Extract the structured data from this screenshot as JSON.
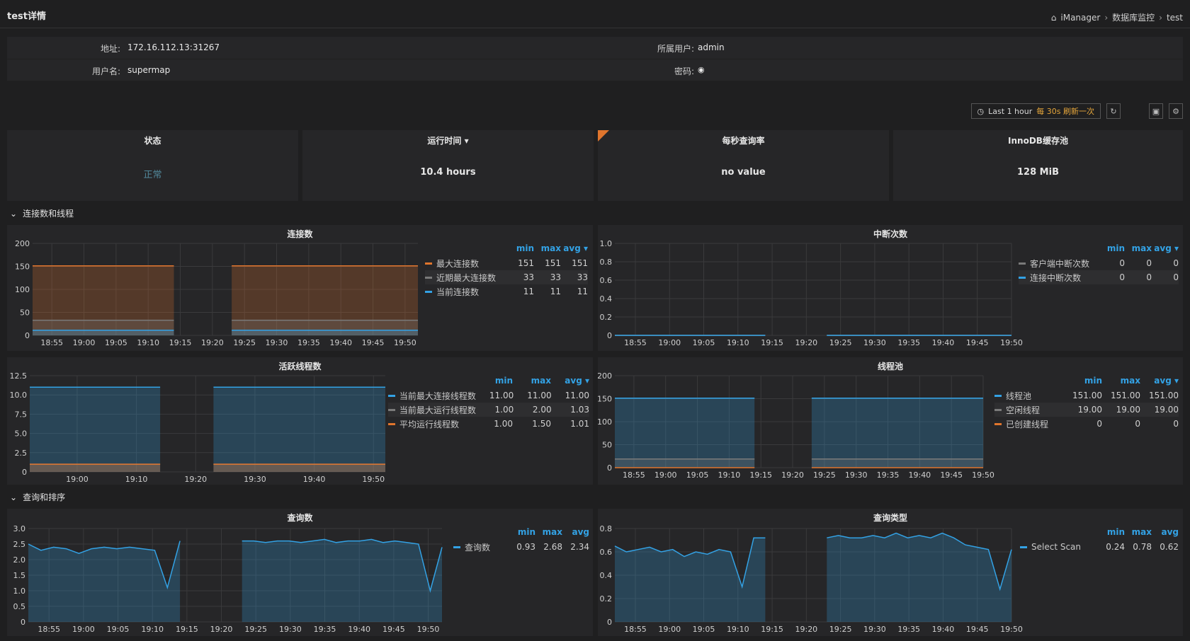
{
  "header": {
    "title": "test详情",
    "breadcrumb": [
      "iManager",
      "数据库监控",
      "test"
    ]
  },
  "info": {
    "address_label": "地址:",
    "address": "172.16.112.13:31267",
    "owner_label": "所属用户:",
    "owner": "admin",
    "username_label": "用户名:",
    "username": "supermap",
    "password_label": "密码:",
    "password_icon": "eye-icon"
  },
  "timepicker": {
    "range": "Last 1 hour",
    "refresh": "每 30s 刷新一次"
  },
  "stats": [
    {
      "title": "状态",
      "value": "正常"
    },
    {
      "title": "运行时间",
      "value": "10.4 hours"
    },
    {
      "title": "每秒查询率",
      "value": "no value"
    },
    {
      "title": "InnoDB缓存池",
      "value": "128 MiB"
    }
  ],
  "sections": {
    "connections": "连接数和线程",
    "queries": "查询和排序"
  },
  "colors": {
    "orange": "#e0752d",
    "blue": "#33a2e5",
    "grey": "#7a7a7a",
    "panel": "#262628"
  },
  "panels": {
    "connections": {
      "title": "连接数",
      "legend_header": [
        "min",
        "max",
        "avg"
      ],
      "legend": [
        {
          "name": "最大连接数",
          "color": "#e0752d",
          "min": "151",
          "max": "151",
          "avg": "151"
        },
        {
          "name": "近期最大连接数",
          "color": "#7a7a7a",
          "min": "33",
          "max": "33",
          "avg": "33"
        },
        {
          "name": "当前连接数",
          "color": "#33a2e5",
          "min": "11",
          "max": "11",
          "avg": "11"
        }
      ]
    },
    "aborted": {
      "title": "中断次数",
      "legend_header": [
        "min",
        "max",
        "avg"
      ],
      "legend": [
        {
          "name": "客户端中断次数",
          "color": "#7a7a7a",
          "min": "0",
          "max": "0",
          "avg": "0"
        },
        {
          "name": "连接中断次数",
          "color": "#33a2e5",
          "min": "0",
          "max": "0",
          "avg": "0"
        }
      ]
    },
    "threads": {
      "title": "活跃线程数",
      "legend_header": [
        "min",
        "max",
        "avg"
      ],
      "legend": [
        {
          "name": "当前最大连接线程数",
          "color": "#33a2e5",
          "min": "11.00",
          "max": "11.00",
          "avg": "11.00"
        },
        {
          "name": "当前最大运行线程数",
          "color": "#7a7a7a",
          "min": "1.00",
          "max": "2.00",
          "avg": "1.03"
        },
        {
          "name": "平均运行线程数",
          "color": "#e0752d",
          "min": "1.00",
          "max": "1.50",
          "avg": "1.01"
        }
      ]
    },
    "threadpool": {
      "title": "线程池",
      "legend_header": [
        "min",
        "max",
        "avg"
      ],
      "legend": [
        {
          "name": "线程池",
          "color": "#33a2e5",
          "min": "151.00",
          "max": "151.00",
          "avg": "151.00"
        },
        {
          "name": "空闲线程",
          "color": "#7a7a7a",
          "min": "19.00",
          "max": "19.00",
          "avg": "19.00"
        },
        {
          "name": "已创建线程",
          "color": "#e0752d",
          "min": "0",
          "max": "0",
          "avg": "0"
        }
      ]
    },
    "queries": {
      "title": "查询数",
      "legend_header": [
        "min",
        "max",
        "avg"
      ],
      "legend": [
        {
          "name": "查询数",
          "color": "#33a2e5",
          "min": "0.93",
          "max": "2.68",
          "avg": "2.34"
        }
      ]
    },
    "querytype": {
      "title": "查询类型",
      "legend_header": [
        "min",
        "max",
        "avg"
      ],
      "legend": [
        {
          "name": "Select Scan",
          "color": "#33a2e5",
          "min": "0.24",
          "max": "0.78",
          "avg": "0.62"
        }
      ]
    }
  },
  "chart_data": [
    {
      "type": "area",
      "title": "连接数",
      "ylim": [
        0,
        200
      ],
      "y_ticks": [
        "0",
        "50",
        "100",
        "150",
        "200"
      ],
      "x_ticks": [
        "18:55",
        "19:00",
        "19:05",
        "19:10",
        "19:15",
        "19:20",
        "19:25",
        "19:30",
        "19:35",
        "19:40",
        "19:45",
        "19:50"
      ],
      "segments": [
        [
          "18:52",
          "19:14"
        ],
        [
          "19:23",
          "19:52"
        ]
      ],
      "series": [
        {
          "name": "最大连接数",
          "values": [
            151
          ]
        },
        {
          "name": "近期最大连接数",
          "values": [
            33
          ]
        },
        {
          "name": "当前连接数",
          "values": [
            11
          ]
        }
      ]
    },
    {
      "type": "line",
      "title": "中断次数",
      "ylim": [
        0,
        1.0
      ],
      "y_ticks": [
        "0",
        "0.2",
        "0.4",
        "0.6",
        "0.8",
        "1.0"
      ],
      "x_ticks": [
        "18:55",
        "19:00",
        "19:05",
        "19:10",
        "19:15",
        "19:20",
        "19:25",
        "19:30",
        "19:35",
        "19:40",
        "19:45",
        "19:50"
      ],
      "segments": [
        [
          "18:52",
          "19:14"
        ],
        [
          "19:23",
          "19:50"
        ]
      ],
      "series": [
        {
          "name": "客户端中断次数",
          "values": [
            0
          ]
        },
        {
          "name": "连接中断次数",
          "values": [
            0
          ]
        }
      ]
    },
    {
      "type": "area",
      "title": "活跃线程数",
      "ylim": [
        0,
        12.5
      ],
      "y_ticks": [
        "0",
        "2.5",
        "5.0",
        "7.5",
        "10.0",
        "12.5"
      ],
      "x_ticks": [
        "19:00",
        "19:10",
        "19:20",
        "19:30",
        "19:40",
        "19:50"
      ],
      "segments": [
        [
          "18:52",
          "19:14"
        ],
        [
          "19:23",
          "19:52"
        ]
      ],
      "series": [
        {
          "name": "当前最大连接线程数",
          "values": [
            11
          ]
        },
        {
          "name": "当前最大运行线程数",
          "values": [
            1
          ]
        },
        {
          "name": "平均运行线程数",
          "values": [
            1
          ]
        }
      ]
    },
    {
      "type": "area",
      "title": "线程池",
      "ylim": [
        0,
        200
      ],
      "y_ticks": [
        "0",
        "50",
        "100",
        "150",
        "200"
      ],
      "x_ticks": [
        "18:55",
        "19:00",
        "19:05",
        "19:10",
        "19:15",
        "19:20",
        "19:25",
        "19:30",
        "19:35",
        "19:40",
        "19:45",
        "19:50"
      ],
      "segments": [
        [
          "18:52",
          "19:14"
        ],
        [
          "19:23",
          "19:50"
        ]
      ],
      "series": [
        {
          "name": "线程池",
          "values": [
            151
          ]
        },
        {
          "name": "空闲线程",
          "values": [
            19
          ]
        },
        {
          "name": "已创建线程",
          "values": [
            0
          ]
        }
      ]
    },
    {
      "type": "area",
      "title": "查询数",
      "ylim": [
        0,
        3.0
      ],
      "y_ticks": [
        "0",
        "0.5",
        "1.0",
        "1.5",
        "2.0",
        "2.5",
        "3.0"
      ],
      "x_ticks": [
        "18:55",
        "19:00",
        "19:05",
        "19:10",
        "19:15",
        "19:20",
        "19:25",
        "19:30",
        "19:35",
        "19:40",
        "19:45",
        "19:50"
      ],
      "segments": [
        [
          "18:52",
          "19:14"
        ],
        [
          "19:23",
          "19:52"
        ]
      ],
      "series": [
        {
          "name": "查询数",
          "values": [
            2.5,
            2.3,
            2.4,
            2.35,
            2.2,
            2.35,
            2.4,
            2.35,
            2.4,
            2.35,
            2.3,
            1.1,
            2.6,
            2.6,
            2.6,
            2.55,
            2.6,
            2.6,
            2.55,
            2.6,
            2.65,
            2.55,
            2.6,
            2.6,
            2.65,
            2.55,
            2.6,
            2.55,
            2.5,
            1.0,
            2.4
          ]
        }
      ]
    },
    {
      "type": "area",
      "title": "查询类型",
      "ylim": [
        0,
        0.8
      ],
      "y_ticks": [
        "0",
        "0.2",
        "0.4",
        "0.6",
        "0.8"
      ],
      "x_ticks": [
        "18:55",
        "19:00",
        "19:05",
        "19:10",
        "19:15",
        "19:20",
        "19:25",
        "19:30",
        "19:35",
        "19:40",
        "19:45",
        "19:50"
      ],
      "segments": [
        [
          "18:52",
          "19:14"
        ],
        [
          "19:23",
          "19:50"
        ]
      ],
      "series": [
        {
          "name": "Select Scan",
          "values": [
            0.65,
            0.6,
            0.62,
            0.64,
            0.6,
            0.62,
            0.56,
            0.6,
            0.58,
            0.62,
            0.6,
            0.3,
            0.72,
            0.72,
            0.72,
            0.74,
            0.72,
            0.72,
            0.74,
            0.72,
            0.76,
            0.72,
            0.74,
            0.72,
            0.76,
            0.72,
            0.66,
            0.64,
            0.62,
            0.28,
            0.62
          ]
        }
      ]
    }
  ]
}
